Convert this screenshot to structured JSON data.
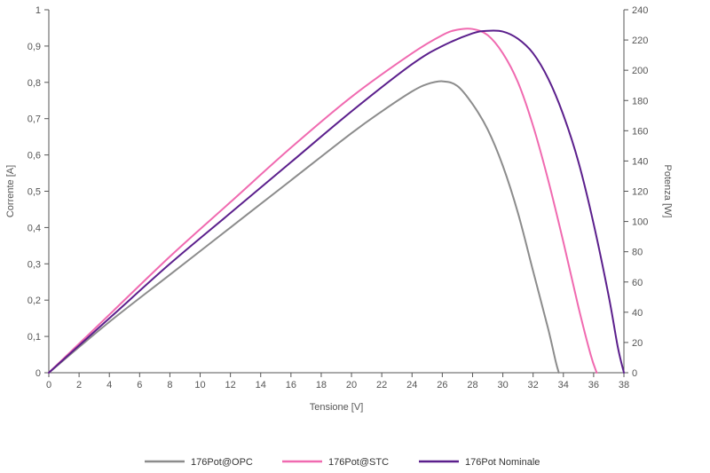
{
  "chart_data": {
    "type": "line",
    "xlabel": "Tensione [V]",
    "ylabel_left": "Corrente [A]",
    "ylabel_right": "Potenza [W]",
    "xlim": [
      0,
      38
    ],
    "ylim_left": [
      0,
      1
    ],
    "ylim_right": [
      0,
      240
    ],
    "x_ticks": [
      "0",
      "2",
      "4",
      "6",
      "8",
      "10",
      "12",
      "14",
      "16",
      "18",
      "20",
      "22",
      "24",
      "26",
      "28",
      "30",
      "32",
      "34",
      "36",
      "38"
    ],
    "y_left_ticks": [
      "0",
      "0,1",
      "0,2",
      "0,3",
      "0,4",
      "0,5",
      "0,6",
      "0,7",
      "0,8",
      "0,9",
      "1"
    ],
    "y_right_ticks": [
      "0",
      "20",
      "40",
      "60",
      "80",
      "100",
      "120",
      "140",
      "160",
      "180",
      "200",
      "220",
      "240"
    ],
    "grid": false,
    "legend_position": "bottom",
    "series": [
      {
        "name": "176Pot@OPC",
        "color": "#8c8c8c",
        "x": [
          0,
          4,
          8,
          12,
          16,
          20,
          22,
          24,
          25,
          26,
          27,
          28,
          29,
          30,
          31,
          32,
          33,
          33.5,
          33.7
        ],
        "y": [
          0,
          0.14,
          0.27,
          0.4,
          0.53,
          0.66,
          0.72,
          0.775,
          0.795,
          0.803,
          0.79,
          0.74,
          0.67,
          0.57,
          0.44,
          0.28,
          0.12,
          0.03,
          0
        ]
      },
      {
        "name": "176Pot@STC",
        "color": "#f06ab0",
        "x": [
          0,
          4,
          8,
          12,
          16,
          20,
          24,
          26,
          27,
          28,
          29,
          30,
          31,
          32,
          33,
          34,
          35,
          35.8,
          36.2
        ],
        "y": [
          0,
          0.16,
          0.32,
          0.47,
          0.62,
          0.76,
          0.88,
          0.93,
          0.945,
          0.947,
          0.93,
          0.88,
          0.8,
          0.68,
          0.53,
          0.36,
          0.18,
          0.05,
          0
        ]
      },
      {
        "name": "176Pot Nominale",
        "color": "#5b1f8c",
        "x": [
          0,
          4,
          8,
          12,
          16,
          20,
          24,
          26,
          28,
          29,
          30,
          31,
          32,
          33,
          34,
          35,
          36,
          37,
          37.6,
          38
        ],
        "y": [
          0,
          0.15,
          0.3,
          0.44,
          0.58,
          0.72,
          0.85,
          0.9,
          0.935,
          0.942,
          0.94,
          0.92,
          0.88,
          0.81,
          0.71,
          0.58,
          0.41,
          0.21,
          0.07,
          0
        ]
      }
    ]
  }
}
